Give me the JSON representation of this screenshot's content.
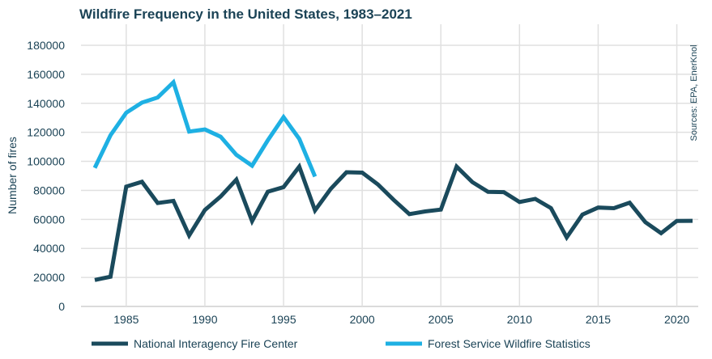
{
  "chart_data": {
    "type": "line",
    "title": "Wildfire Frequency in the United States, 1983–2021",
    "ylabel": "Number of fires",
    "xlabel": "",
    "source": "Sources: EPA, EnerKnol",
    "ylim": [
      0,
      180000
    ],
    "yticks": [
      0,
      20000,
      40000,
      60000,
      80000,
      100000,
      120000,
      140000,
      160000,
      180000
    ],
    "xticks": [
      1985,
      1990,
      1995,
      2000,
      2005,
      2010,
      2015,
      2020
    ],
    "grid": true,
    "legend_position": "bottom",
    "series": [
      {
        "name": "National Interagency Fire Center",
        "color": "#1a4a5c",
        "x": [
          1983,
          1984,
          1985,
          1986,
          1987,
          1988,
          1989,
          1990,
          1991,
          1992,
          1993,
          1994,
          1995,
          1996,
          1997,
          1998,
          1999,
          2000,
          2001,
          2002,
          2003,
          2004,
          2005,
          2006,
          2007,
          2008,
          2009,
          2010,
          2011,
          2012,
          2013,
          2014,
          2015,
          2016,
          2017,
          2018,
          2019,
          2020,
          2021
        ],
        "values": [
          18229,
          20493,
          82591,
          85907,
          71300,
          72750,
          48949,
          66481,
          75754,
          87394,
          58810,
          79107,
          82234,
          96363,
          66196,
          81043,
          92487,
          92250,
          84079,
          73457,
          63629,
          65461,
          66753,
          96385,
          85705,
          78979,
          78792,
          71971,
          74126,
          67774,
          47579,
          63312,
          68151,
          67743,
          71499,
          58083,
          50477,
          58950,
          58985
        ]
      },
      {
        "name": "Forest Service Wildfire Statistics",
        "color": "#1eb0e3",
        "x": [
          1983,
          1984,
          1985,
          1986,
          1987,
          1988,
          1989,
          1990,
          1991,
          1992,
          1993,
          1994,
          1995,
          1996,
          1997
        ],
        "values": [
          95500,
          118000,
          133500,
          140500,
          144000,
          154500,
          120500,
          122000,
          117000,
          104500,
          97000,
          114500,
          130500,
          115500,
          89500
        ]
      }
    ]
  }
}
